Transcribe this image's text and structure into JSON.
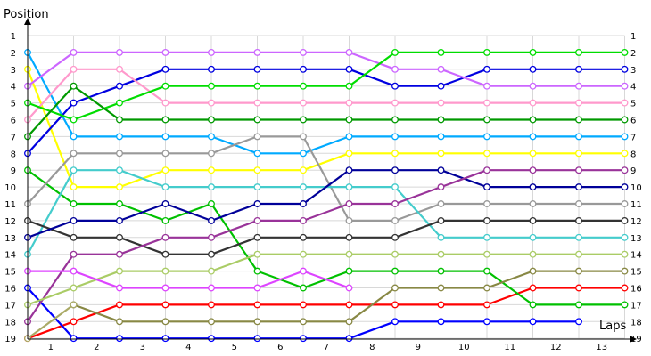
{
  "chart_data": {
    "type": "line",
    "title": "",
    "xlabel": "Laps",
    "ylabel": "Position",
    "x": [
      0,
      1,
      2,
      3,
      4,
      5,
      6,
      7,
      8,
      9,
      10,
      11,
      12,
      13
    ],
    "x_tick_labels": [
      "1",
      "2",
      "3",
      "4",
      "5",
      "6",
      "7",
      "8",
      "9",
      "10",
      "11",
      "12",
      "13"
    ],
    "y_tick_labels": [
      "1",
      "2",
      "3",
      "4",
      "5",
      "6",
      "7",
      "8",
      "9",
      "10",
      "11",
      "12",
      "13",
      "14",
      "15",
      "16",
      "17",
      "18",
      "19"
    ],
    "ylim": [
      1,
      19
    ],
    "y_inverted": true,
    "grid": true,
    "legend": "none",
    "series": [
      {
        "color": "#ff0000",
        "values": [
          19,
          18,
          17,
          17,
          17,
          17,
          17,
          17,
          17,
          17,
          17,
          16,
          16,
          16
        ]
      },
      {
        "color": "#0000ff",
        "values": [
          16,
          19,
          19,
          19,
          19,
          19,
          19,
          19,
          18,
          18,
          18,
          18,
          18,
          null
        ]
      },
      {
        "color": "#00c000",
        "values": [
          9,
          11,
          11,
          12,
          11,
          15,
          16,
          15,
          15,
          15,
          15,
          17,
          17,
          17
        ]
      },
      {
        "color": "#ffff00",
        "values": [
          3,
          10,
          10,
          9,
          9,
          9,
          9,
          8,
          8,
          8,
          8,
          8,
          8,
          8
        ]
      },
      {
        "color": "#0000e0",
        "values": [
          8,
          5,
          4,
          3,
          3,
          3,
          3,
          3,
          4,
          4,
          3,
          3,
          3,
          3
        ]
      },
      {
        "color": "#00aaff",
        "values": [
          2,
          7,
          7,
          7,
          7,
          8,
          8,
          7,
          7,
          7,
          7,
          7,
          7,
          7
        ]
      },
      {
        "color": "#ff99cc",
        "values": [
          6,
          3,
          3,
          5,
          5,
          5,
          5,
          5,
          5,
          5,
          5,
          5,
          5,
          5
        ]
      },
      {
        "color": "#cc66ff",
        "values": [
          4,
          2,
          2,
          2,
          2,
          2,
          2,
          2,
          3,
          3,
          4,
          4,
          4,
          4
        ]
      },
      {
        "color": "#00dd00",
        "values": [
          5,
          6,
          5,
          4,
          4,
          4,
          4,
          4,
          2,
          2,
          2,
          2,
          2,
          2
        ]
      },
      {
        "color": "#009900",
        "values": [
          7,
          4,
          6,
          6,
          6,
          6,
          6,
          6,
          6,
          6,
          6,
          6,
          6,
          6
        ]
      },
      {
        "color": "#999999",
        "values": [
          11,
          8,
          8,
          8,
          8,
          7,
          7,
          12,
          12,
          11,
          11,
          11,
          11,
          11
        ]
      },
      {
        "color": "#44cccc",
        "values": [
          14,
          9,
          9,
          10,
          10,
          10,
          10,
          10,
          10,
          13,
          13,
          13,
          13,
          13
        ]
      },
      {
        "color": "#333333",
        "values": [
          12,
          13,
          13,
          14,
          14,
          13,
          13,
          13,
          13,
          12,
          12,
          12,
          12,
          12
        ]
      },
      {
        "color": "#000099",
        "values": [
          13,
          12,
          12,
          11,
          12,
          11,
          11,
          9,
          9,
          9,
          10,
          10,
          10,
          10
        ]
      },
      {
        "color": "#993399",
        "values": [
          18,
          14,
          14,
          13,
          13,
          12,
          12,
          11,
          11,
          10,
          9,
          9,
          9,
          9
        ]
      },
      {
        "color": "#aacc66",
        "values": [
          17,
          16,
          15,
          15,
          15,
          14,
          14,
          14,
          14,
          14,
          14,
          14,
          14,
          14
        ]
      },
      {
        "color": "#dd44ff",
        "values": [
          15,
          15,
          16,
          16,
          16,
          16,
          15,
          16,
          null,
          null,
          null,
          null,
          null,
          null
        ]
      },
      {
        "color": "#888844",
        "values": [
          null,
          17,
          18,
          18,
          18,
          18,
          18,
          18,
          16,
          16,
          16,
          15,
          15,
          15
        ]
      },
      {
        "color": "#aaaa66",
        "values": [
          19,
          17,
          null,
          null,
          null,
          null,
          null,
          null,
          null,
          null,
          null,
          null,
          null,
          null
        ]
      }
    ]
  }
}
